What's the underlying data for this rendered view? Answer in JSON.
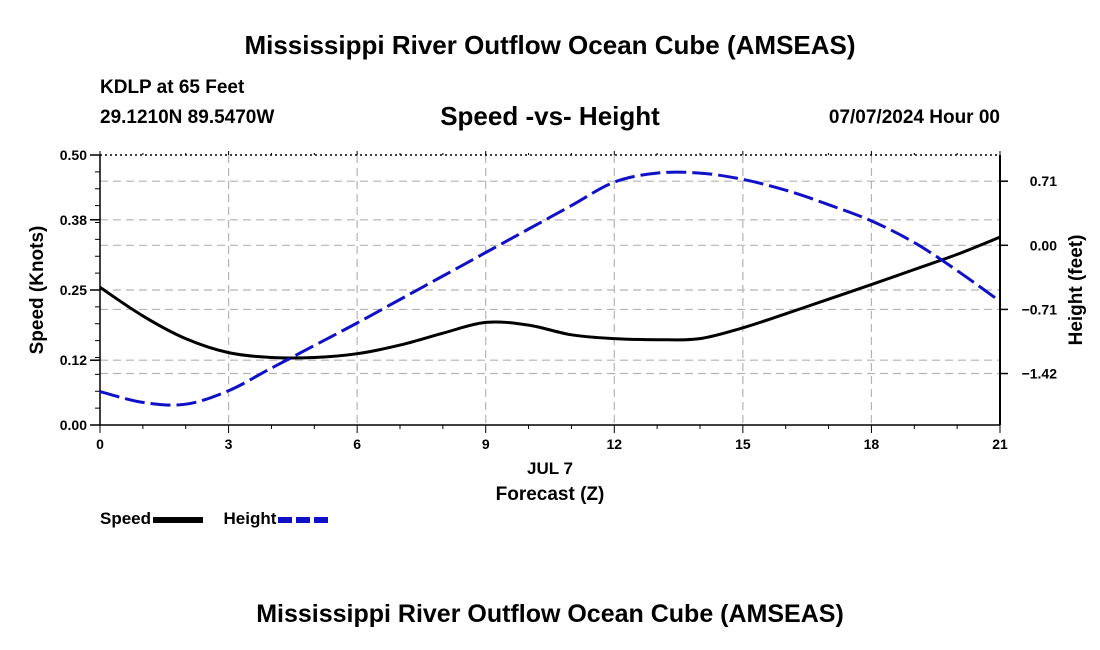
{
  "page": {
    "title": "Mississippi River Outflow Ocean Cube (AMSEAS)",
    "footer_title": "Mississippi River Outflow Ocean Cube (AMSEAS)",
    "station": "KDLP at 65 Feet",
    "coords": "29.1210N  89.5470W",
    "datetime": "07/07/2024 Hour 00"
  },
  "legend": {
    "speed_label": "Speed",
    "height_label": "Height"
  },
  "colors": {
    "speed": "#000000",
    "height": "#1010c8",
    "grid": "#b4b4b4"
  },
  "chart_data": {
    "type": "line",
    "title": "Speed -vs- Height",
    "xlabel": "Forecast (Z)",
    "xlabel_date": "JUL 7",
    "ylabel": "Speed (Knots)",
    "y2label": "Height (feet)",
    "xlim": [
      0,
      21
    ],
    "ylim": [
      0,
      0.5
    ],
    "y2lim": [
      -1.99,
      1.0
    ],
    "x_ticks": [
      0,
      3,
      6,
      9,
      12,
      15,
      18,
      21
    ],
    "y_ticks": [
      0.0,
      0.12,
      0.25,
      0.38,
      0.5
    ],
    "y_tick_labels": [
      "0.00",
      "0.12",
      "0.25",
      "0.38",
      "0.50"
    ],
    "y2_ticks": [
      0.71,
      0.0,
      -0.71,
      -1.42
    ],
    "y2_tick_labels": [
      "0.71",
      "0.00",
      "−0.71",
      "−1.42"
    ],
    "grid": true,
    "series": [
      {
        "name": "Speed",
        "axis": "left",
        "style": "solid",
        "x": [
          0,
          1,
          2,
          3,
          4,
          5,
          6,
          7,
          8,
          9,
          10,
          11,
          12,
          13,
          14,
          15,
          16,
          17,
          18,
          19,
          20,
          21
        ],
        "values": [
          0.255,
          0.202,
          0.16,
          0.134,
          0.125,
          0.125,
          0.132,
          0.148,
          0.17,
          0.19,
          0.185,
          0.167,
          0.16,
          0.158,
          0.16,
          0.18,
          0.206,
          0.233,
          0.26,
          0.288,
          0.316,
          0.348
        ]
      },
      {
        "name": "Height",
        "axis": "right",
        "style": "dashed",
        "x": [
          0,
          1,
          2,
          3,
          4,
          5,
          6,
          7,
          8,
          9,
          10,
          11,
          12,
          13,
          14,
          15,
          16,
          17,
          18,
          19,
          20,
          21
        ],
        "values": [
          -1.62,
          -1.74,
          -1.76,
          -1.61,
          -1.36,
          -1.11,
          -0.86,
          -0.6,
          -0.34,
          -0.08,
          0.18,
          0.44,
          0.7,
          0.8,
          0.8,
          0.73,
          0.61,
          0.45,
          0.27,
          0.03,
          -0.28,
          -0.62
        ]
      }
    ]
  }
}
